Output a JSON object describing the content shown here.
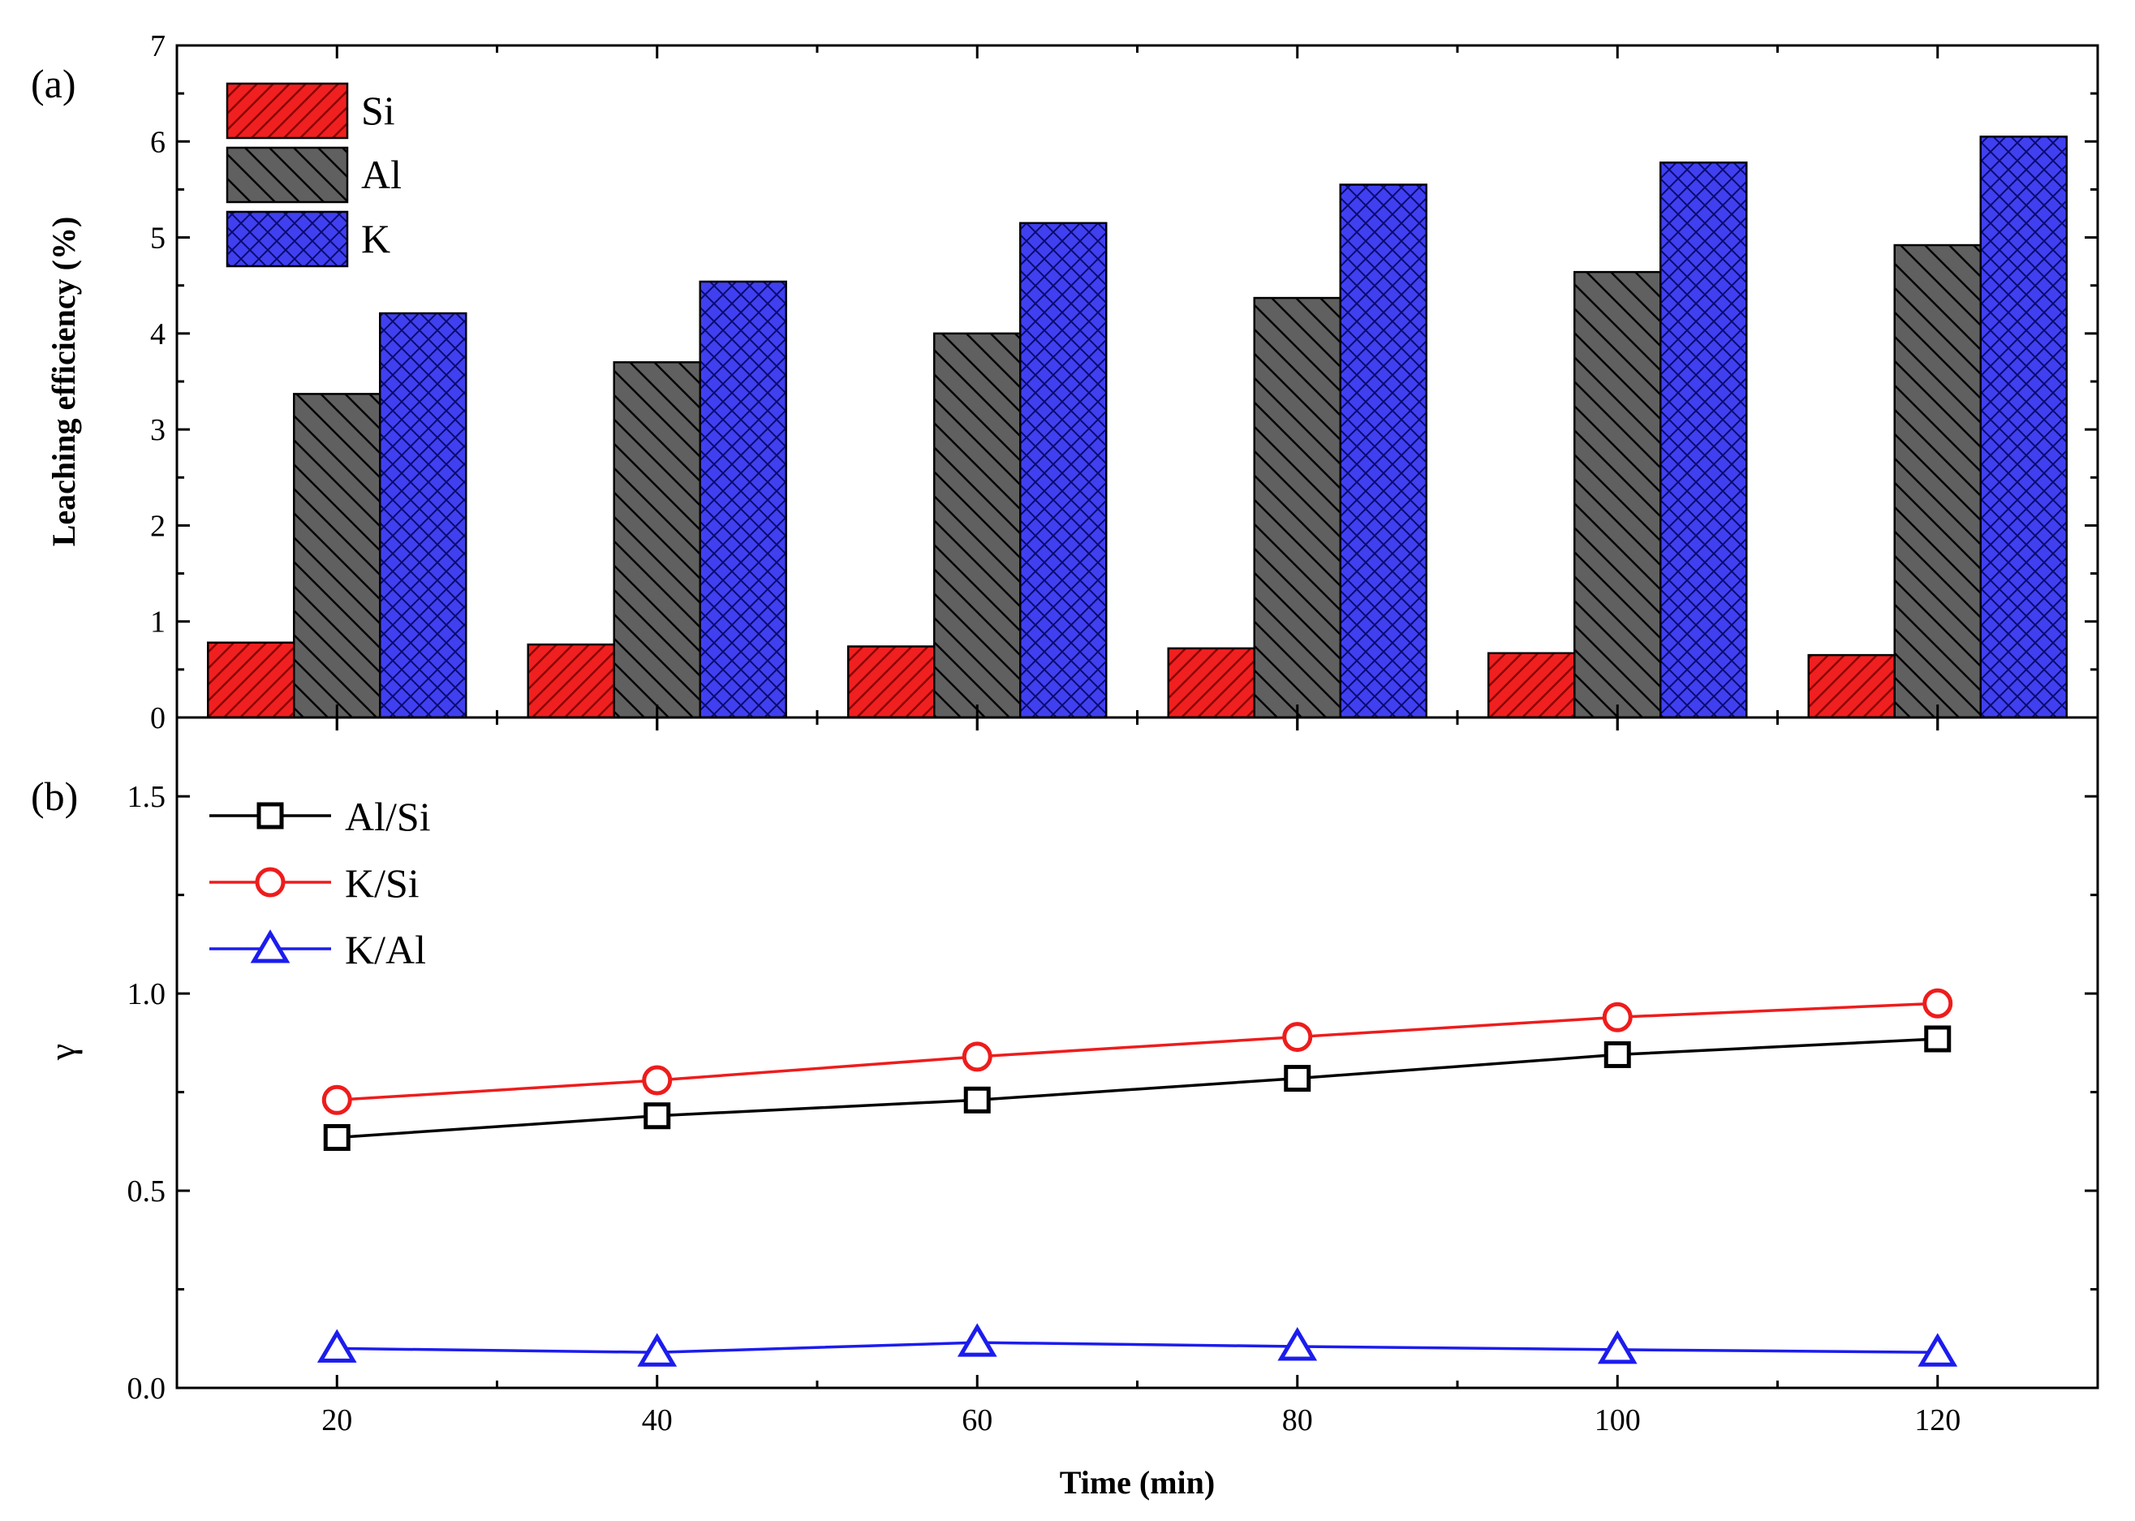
{
  "chart_data": [
    {
      "type": "bar",
      "panel_label": "(a)",
      "title": "",
      "xlabel": "",
      "ylabel": "Leaching efficiency (%)",
      "categories": [
        "20",
        "40",
        "60",
        "80",
        "100",
        "120"
      ],
      "ylim": [
        0,
        7
      ],
      "yticks": [
        "0",
        "1",
        "2",
        "3",
        "4",
        "5",
        "6",
        "7"
      ],
      "grid": false,
      "legend_position": "top-left",
      "series": [
        {
          "name": "Si",
          "color": "#f02020",
          "pattern": "diagonal-hatch-forward",
          "values": [
            0.78,
            0.76,
            0.74,
            0.72,
            0.67,
            0.65
          ]
        },
        {
          "name": "Al",
          "color": "#606060",
          "pattern": "diagonal-hatch-back",
          "values": [
            3.37,
            3.7,
            4.0,
            4.37,
            4.64,
            4.92
          ]
        },
        {
          "name": "K",
          "color": "#4040f0",
          "pattern": "crosshatch",
          "values": [
            4.21,
            4.54,
            5.15,
            5.55,
            5.78,
            6.05
          ]
        }
      ]
    },
    {
      "type": "line",
      "panel_label": "(b)",
      "title": "",
      "xlabel": "Time (min)",
      "ylabel": "γ",
      "x": [
        20,
        40,
        60,
        80,
        100,
        120
      ],
      "xticks": [
        "20",
        "40",
        "60",
        "80",
        "100",
        "120"
      ],
      "xlim": [
        10,
        130
      ],
      "ylim": [
        0,
        1.7
      ],
      "yticks": [
        "0.0",
        "0.5",
        "1.0",
        "1.5"
      ],
      "grid": false,
      "legend_position": "top-left",
      "series": [
        {
          "name": "Al/Si",
          "color": "#000000",
          "marker": "square",
          "values": [
            0.635,
            0.69,
            0.73,
            0.785,
            0.845,
            0.885
          ]
        },
        {
          "name": "K/Si",
          "color": "#ee1c1c",
          "marker": "circle",
          "values": [
            0.73,
            0.78,
            0.84,
            0.89,
            0.94,
            0.975
          ]
        },
        {
          "name": "K/Al",
          "color": "#1c1cee",
          "marker": "triangle",
          "values": [
            0.1,
            0.09,
            0.115,
            0.105,
            0.097,
            0.09
          ]
        }
      ]
    }
  ]
}
